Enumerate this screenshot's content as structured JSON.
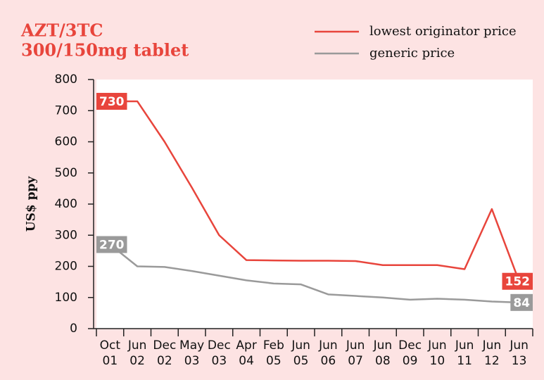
{
  "chart_data": {
    "type": "line",
    "title": "AZT/3TC",
    "subtitle": "300/150mg tablet",
    "y_label": "US$ ppy",
    "categories": [
      [
        "Oct",
        "01"
      ],
      [
        "Jun",
        "02"
      ],
      [
        "Dec",
        "02"
      ],
      [
        "May",
        "03"
      ],
      [
        "Dec",
        "03"
      ],
      [
        "Apr",
        "04"
      ],
      [
        "Feb",
        "05"
      ],
      [
        "Jun",
        "05"
      ],
      [
        "Jun",
        "06"
      ],
      [
        "Jun",
        "07"
      ],
      [
        "Jun",
        "08"
      ],
      [
        "Dec",
        "09"
      ],
      [
        "Jun",
        "10"
      ],
      [
        "Jun",
        "11"
      ],
      [
        "Jun",
        "12"
      ],
      [
        "Jun",
        "13"
      ]
    ],
    "series": [
      {
        "name": "lowest originator price",
        "color": "#e8453c",
        "values": [
          730,
          730,
          600,
          453,
          300,
          220,
          219,
          218,
          218,
          217,
          204,
          204,
          204,
          191,
          384,
          152
        ]
      },
      {
        "name": "generic price",
        "color": "#9a9a9a",
        "values": [
          270,
          200,
          198,
          185,
          170,
          155,
          145,
          142,
          110,
          105,
          100,
          93,
          96,
          93,
          87,
          84
        ]
      }
    ],
    "ylim": [
      0,
      800
    ],
    "yticks": [
      0,
      100,
      200,
      300,
      400,
      500,
      600,
      700,
      800
    ],
    "grid": false,
    "legend": "top-right"
  }
}
